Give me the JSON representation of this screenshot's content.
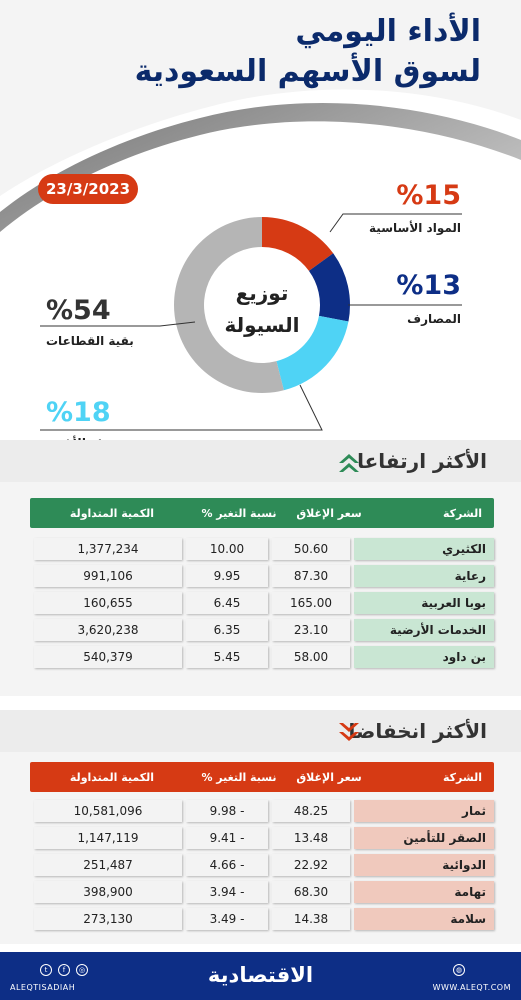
{
  "header": {
    "title_line1": "الأداء اليومي",
    "title_line2": "لسوق الأسهم السعودية",
    "date": "23/3/2023"
  },
  "colors": {
    "navy": "#0b2a6b",
    "red": "#d63a14",
    "green": "#2e8b57",
    "blue": "#1a3a9c",
    "cyan": "#4fd3f5",
    "grey": "#b5b5b5"
  },
  "chart_data": {
    "type": "pie",
    "title": "توزيع السيولة",
    "center_line1": "توزيع",
    "center_line2": "السيولة",
    "slices": [
      {
        "label": "المواد الأساسية",
        "value": 15,
        "value_text": "%15",
        "color": "#d63a14"
      },
      {
        "label": "المصارف",
        "value": 13,
        "value_text": "%13",
        "color": "#0d2e86"
      },
      {
        "label": "تجزئة الأغذية",
        "value": 18,
        "value_text": "%18",
        "color": "#4fd3f5"
      },
      {
        "label": "بقية القطاعات",
        "value": 54,
        "value_text": "%54",
        "color": "#b5b5b5"
      }
    ]
  },
  "gainers": {
    "title": "الأكثر ارتفاعا",
    "icon": "double-chevron-up-icon",
    "headers": {
      "company": "الشركة",
      "close": "سعر الإغلاق",
      "change": "نسبة التغير %",
      "volume": "الكمية المتداولة"
    },
    "rows": [
      {
        "company": "الكثيري",
        "close": "50.60",
        "change": "10.00",
        "volume": "1,377,234"
      },
      {
        "company": "رعاية",
        "close": "87.30",
        "change": "9.95",
        "volume": "991,106"
      },
      {
        "company": "بوبا العربية",
        "close": "165.00",
        "change": "6.45",
        "volume": "160,655"
      },
      {
        "company": "الخدمات الأرضية",
        "close": "23.10",
        "change": "6.35",
        "volume": "3,620,238"
      },
      {
        "company": "بن داود",
        "close": "58.00",
        "change": "5.45",
        "volume": "540,379"
      }
    ]
  },
  "losers": {
    "title": "الأكثر انخفاضا",
    "icon": "double-chevron-down-icon",
    "headers": {
      "company": "الشركة",
      "close": "سعر الإغلاق",
      "change": "نسبة التغير %",
      "volume": "الكمية المتداولة"
    },
    "rows": [
      {
        "company": "ثمار",
        "close": "48.25",
        "change": "- 9.98",
        "volume": "10,581,096"
      },
      {
        "company": "الصقر للتأمين",
        "close": "13.48",
        "change": "- 9.41",
        "volume": "1,147,119"
      },
      {
        "company": "الدوائية",
        "close": "22.92",
        "change": "- 4.66",
        "volume": "251,487"
      },
      {
        "company": "تهامة",
        "close": "68.30",
        "change": "- 3.94",
        "volume": "398,900"
      },
      {
        "company": "سلامة",
        "close": "14.38",
        "change": "- 3.49",
        "volume": "273,130"
      }
    ]
  },
  "footer": {
    "logo": "الاقتصادية",
    "handle": "ALEQTISADIAH",
    "website": "WWW.ALEQT.COM"
  }
}
